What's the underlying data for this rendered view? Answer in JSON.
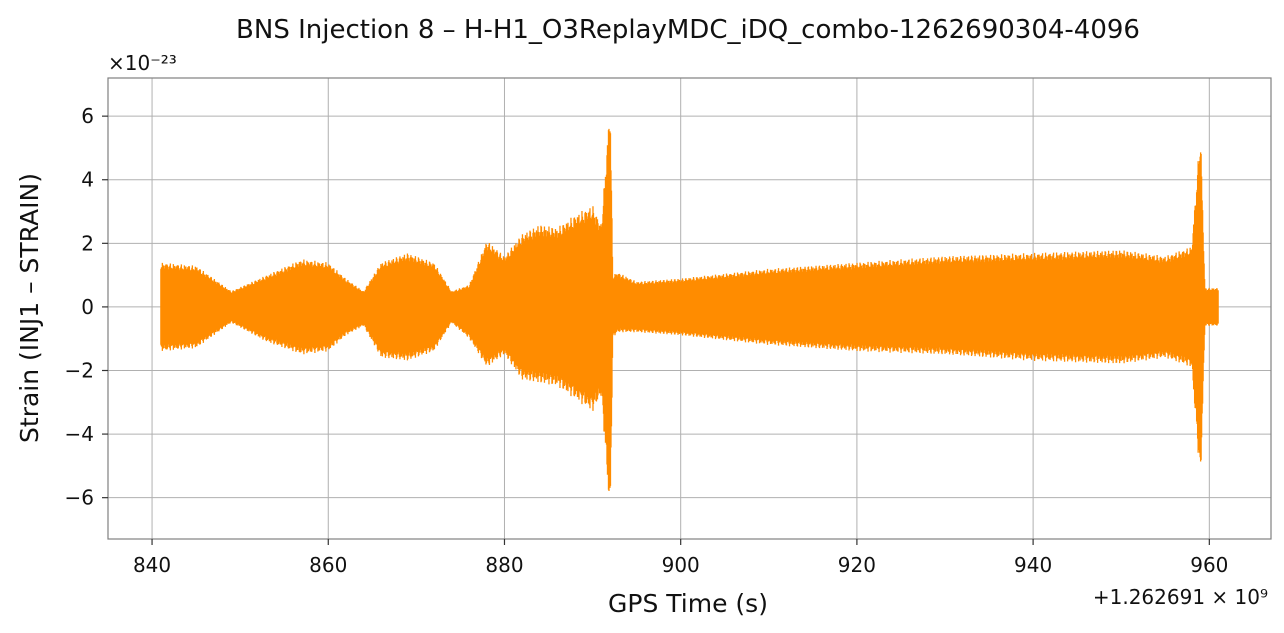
{
  "chart_data": {
    "type": "line",
    "title": "BNS Injection 8 – H-H1_O3ReplayMDC_iDQ_combo-1262690304-4096",
    "xlabel": "GPS Time (s)",
    "ylabel": "Strain (INJ1 – STRAIN)",
    "x_offset_label": "+1.262691 × 10⁹",
    "y_scale_label": "×10⁻²³",
    "xlim": [
      835,
      967
    ],
    "ylim": [
      -7.3,
      7.2
    ],
    "xticks": [
      840,
      860,
      880,
      900,
      920,
      940,
      960
    ],
    "xtick_labels": [
      "840",
      "860",
      "880",
      "900",
      "920",
      "940",
      "960"
    ],
    "yticks": [
      -6,
      -4,
      -2,
      0,
      2,
      4,
      6
    ],
    "ytick_labels": [
      "−6",
      "−4",
      "−2",
      "0",
      "2",
      "4",
      "6"
    ],
    "grid": true,
    "series": [
      {
        "color": "#ff8c00",
        "x": [
          841,
          845,
          849,
          853,
          857,
          860,
          862,
          864,
          866,
          869,
          872,
          874,
          876,
          878,
          880,
          882,
          884,
          886,
          888,
          890,
          891,
          892,
          892.3,
          892.8,
          895,
          900,
          910,
          920,
          930,
          940,
          950,
          955,
          958,
          959,
          959.5,
          961
        ],
        "upper": [
          1.4,
          1.3,
          0.5,
          1.0,
          1.5,
          1.4,
          0.9,
          0.5,
          1.4,
          1.7,
          1.4,
          0.5,
          0.7,
          2.1,
          1.6,
          2.3,
          2.6,
          2.5,
          2.9,
          3.2,
          2.6,
          6.5,
          1.0,
          1.1,
          0.8,
          0.9,
          1.2,
          1.4,
          1.6,
          1.7,
          1.8,
          1.6,
          1.9,
          5.6,
          0.6,
          0.6
        ],
        "lower": [
          -1.4,
          -1.3,
          -0.5,
          -1.1,
          -1.5,
          -1.4,
          -0.9,
          -0.6,
          -1.6,
          -1.7,
          -1.4,
          -0.5,
          -1.0,
          -1.9,
          -1.5,
          -2.3,
          -2.4,
          -2.5,
          -2.9,
          -3.3,
          -2.8,
          -6.7,
          -1.0,
          -0.8,
          -0.8,
          -0.9,
          -1.2,
          -1.4,
          -1.5,
          -1.7,
          -1.8,
          -1.6,
          -1.9,
          -5.6,
          -0.6,
          -0.6
        ]
      }
    ]
  }
}
